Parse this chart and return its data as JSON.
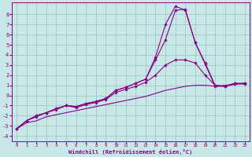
{
  "xlabel": "Windchill (Refroidissement éolien,°C)",
  "bg_color": "#c8e8e8",
  "grid_color": "#a0c8c8",
  "line_color": "#880088",
  "x_ticks": [
    0,
    1,
    2,
    3,
    4,
    5,
    6,
    7,
    8,
    9,
    10,
    11,
    12,
    13,
    14,
    15,
    16,
    17,
    18,
    19,
    20,
    21,
    22,
    23
  ],
  "y_ticks": [
    -4,
    -3,
    -2,
    -1,
    0,
    1,
    2,
    3,
    4,
    5,
    6,
    7,
    8
  ],
  "xlim": [
    -0.5,
    23.5
  ],
  "ylim": [
    -4.5,
    9.2
  ],
  "line1_x": [
    0,
    1,
    2,
    3,
    4,
    5,
    6,
    7,
    8,
    9,
    10,
    11,
    12,
    13,
    14,
    15,
    16,
    17,
    18,
    19,
    20,
    21,
    22,
    23
  ],
  "line1_y": [
    -3.3,
    -2.7,
    -2.5,
    -2.1,
    -1.9,
    -1.7,
    -1.5,
    -1.3,
    -1.1,
    -0.9,
    -0.7,
    -0.5,
    -0.3,
    -0.1,
    0.2,
    0.5,
    0.7,
    0.9,
    1.0,
    1.0,
    0.9,
    1.0,
    1.1,
    1.2
  ],
  "line2_x": [
    0,
    1,
    2,
    3,
    4,
    5,
    6,
    7,
    8,
    9,
    10,
    11,
    12,
    13,
    14,
    15,
    16,
    17,
    18,
    19,
    20,
    21,
    22,
    23
  ],
  "line2_y": [
    -3.3,
    -2.5,
    -2.1,
    -1.7,
    -1.4,
    -1.0,
    -1.2,
    -0.9,
    -0.7,
    -0.4,
    0.3,
    0.6,
    0.9,
    1.3,
    2.0,
    3.0,
    3.5,
    3.5,
    3.2,
    2.0,
    1.0,
    0.9,
    1.1,
    1.2
  ],
  "line3_x": [
    0,
    1,
    2,
    3,
    4,
    5,
    6,
    7,
    8,
    9,
    10,
    11,
    12,
    13,
    14,
    15,
    16,
    17,
    18,
    19,
    20,
    21,
    22,
    23
  ],
  "line3_y": [
    -3.3,
    -2.5,
    -2.0,
    -1.7,
    -1.3,
    -1.0,
    -1.1,
    -0.8,
    -0.6,
    -0.3,
    0.5,
    0.8,
    1.2,
    1.6,
    3.5,
    5.5,
    8.4,
    8.5,
    5.2,
    3.2,
    1.0,
    0.9,
    1.2,
    1.2
  ],
  "line4_x": [
    0,
    1,
    2,
    3,
    4,
    5,
    6,
    7,
    8,
    9,
    10,
    11,
    12,
    13,
    14,
    15,
    16,
    17,
    18,
    19,
    20,
    21,
    22,
    23
  ],
  "line4_y": [
    -3.3,
    -2.5,
    -2.0,
    -1.7,
    -1.3,
    -1.0,
    -1.1,
    -0.8,
    -0.6,
    -0.3,
    0.5,
    0.8,
    1.2,
    1.6,
    3.8,
    7.0,
    8.8,
    8.4,
    5.2,
    3.1,
    0.9,
    0.9,
    1.2,
    1.1
  ],
  "line1_has_markers": false,
  "line2_has_markers": true,
  "line3_has_markers": true,
  "line4_has_markers": true
}
